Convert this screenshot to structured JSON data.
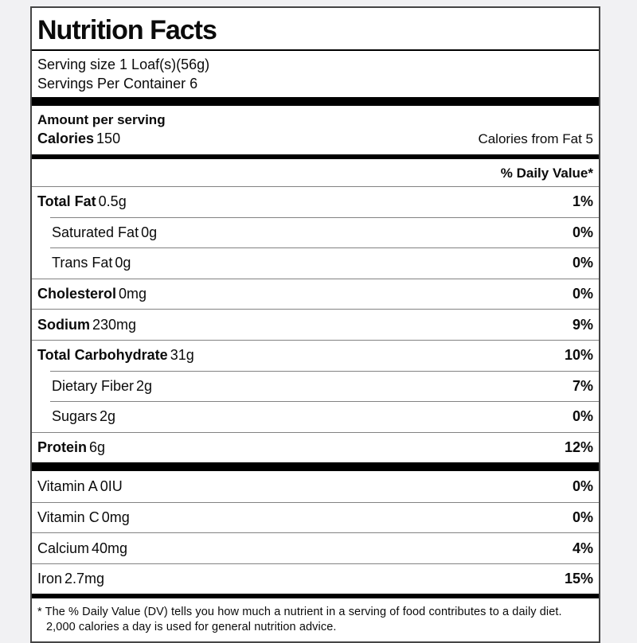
{
  "page": {
    "background_color": "#f1f1f3",
    "label_background": "#ffffff",
    "bar_color": "#000000",
    "separator_color": "#828282"
  },
  "label": {
    "title": "Nutrition Facts",
    "serving_size": "Serving size 1 Loaf(s)(56g)",
    "servings_per_container": "Servings Per Container 6",
    "amount_per_serving": "Amount per serving",
    "calories_label": "Calories",
    "calories_value": "150",
    "calories_from_fat": "Calories from Fat 5",
    "daily_value_header": "% Daily Value*",
    "nutrient_rows": [
      {
        "name": "Total Fat",
        "amount": "0.5g",
        "dv": "1%",
        "bold": true,
        "indent": false
      },
      {
        "name": "Saturated Fat",
        "amount": "0g",
        "dv": "0%",
        "bold": false,
        "indent": true
      },
      {
        "name": "Trans Fat",
        "amount": "0g",
        "dv": "0%",
        "bold": false,
        "indent": true
      },
      {
        "name": "Cholesterol",
        "amount": "0mg",
        "dv": "0%",
        "bold": true,
        "indent": false
      },
      {
        "name": "Sodium",
        "amount": "230mg",
        "dv": "9%",
        "bold": true,
        "indent": false
      },
      {
        "name": "Total Carbohydrate",
        "amount": "31g",
        "dv": "10%",
        "bold": true,
        "indent": false
      },
      {
        "name": "Dietary Fiber",
        "amount": "2g",
        "dv": "7%",
        "bold": false,
        "indent": true
      },
      {
        "name": "Sugars",
        "amount": "2g",
        "dv": "0%",
        "bold": false,
        "indent": true
      },
      {
        "name": "Protein",
        "amount": "6g",
        "dv": "12%",
        "bold": true,
        "indent": false
      }
    ],
    "micronutrient_rows": [
      {
        "name": "Vitamin A",
        "amount": "0IU",
        "dv": "0%",
        "bold": false,
        "indent": false
      },
      {
        "name": "Vitamin C",
        "amount": "0mg",
        "dv": "0%",
        "bold": false,
        "indent": false
      },
      {
        "name": "Calcium",
        "amount": "40mg",
        "dv": "4%",
        "bold": false,
        "indent": false
      },
      {
        "name": "Iron",
        "amount": "2.7mg",
        "dv": "15%",
        "bold": false,
        "indent": false
      }
    ],
    "footnote": "* The % Daily Value (DV) tells you how much a nutrient in a serving of food contributes to a daily diet. 2,000 calories a day is used for general nutrition advice."
  }
}
